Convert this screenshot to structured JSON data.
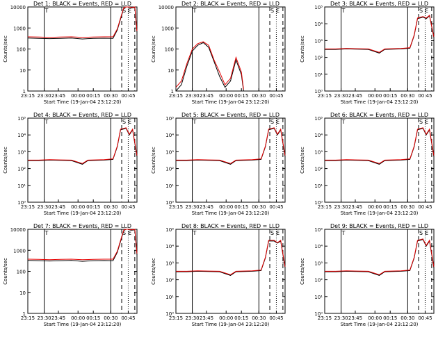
{
  "chart_data": {
    "type": "line",
    "layout_note": "3x3 grid of log-scale count-rate panels",
    "x_tick_labels": [
      "23:15",
      "23:30",
      "23:45",
      "00:00",
      "00:15",
      "00:30",
      "00:45"
    ],
    "x_label": "Start Time (19-Jan-04 23:12:20)",
    "y_label": "Counts/sec",
    "series_colors": {
      "events": "#000000",
      "lld": "#e60000"
    },
    "markers": {
      "left_tick_label": "T",
      "s_label": "S",
      "e_label": "E"
    },
    "panels": [
      {
        "title": "Det 1: BLACK = Events, RED = LLD",
        "y_ticks": [
          "1",
          "10",
          "100",
          "1000",
          "10000"
        ],
        "ylim": [
          1,
          10000
        ],
        "events": [
          [
            0,
            330
          ],
          [
            10,
            320
          ],
          [
            20,
            310
          ],
          [
            30,
            320
          ],
          [
            40,
            330
          ],
          [
            50,
            300
          ],
          [
            60,
            320
          ],
          [
            70,
            325
          ],
          [
            78,
            320
          ],
          [
            82,
            800
          ],
          [
            86,
            4000
          ],
          [
            88,
            9000
          ],
          [
            90,
            10000
          ],
          [
            92,
            10000
          ],
          [
            95,
            9000
          ],
          [
            98,
            9500
          ],
          [
            100,
            600
          ]
        ],
        "lld": [
          [
            0,
            380
          ],
          [
            10,
            370
          ],
          [
            20,
            360
          ],
          [
            30,
            370
          ],
          [
            40,
            380
          ],
          [
            50,
            360
          ],
          [
            60,
            370
          ],
          [
            70,
            380
          ],
          [
            78,
            380
          ],
          [
            82,
            900
          ],
          [
            86,
            4500
          ],
          [
            88,
            9500
          ],
          [
            90,
            10000
          ],
          [
            92,
            10000
          ],
          [
            95,
            9500
          ],
          [
            98,
            10000
          ],
          [
            100,
            700
          ]
        ]
      },
      {
        "title": "Det 2: BLACK = Events, RED = LLD",
        "y_ticks": [
          "1",
          "10",
          "100",
          "1000",
          "10000"
        ],
        "ylim": [
          1,
          10000
        ],
        "events": [
          [
            0,
            1
          ],
          [
            5,
            2
          ],
          [
            10,
            15
          ],
          [
            15,
            80
          ],
          [
            20,
            150
          ],
          [
            25,
            200
          ],
          [
            30,
            120
          ],
          [
            35,
            25
          ],
          [
            40,
            5
          ],
          [
            45,
            1.5
          ],
          [
            50,
            3
          ],
          [
            55,
            30
          ],
          [
            60,
            6
          ],
          [
            62,
            1
          ]
        ],
        "lld": [
          [
            0,
            1.5
          ],
          [
            5,
            3
          ],
          [
            10,
            20
          ],
          [
            15,
            100
          ],
          [
            20,
            180
          ],
          [
            25,
            220
          ],
          [
            30,
            150
          ],
          [
            35,
            30
          ],
          [
            40,
            8
          ],
          [
            45,
            2
          ],
          [
            50,
            4
          ],
          [
            55,
            40
          ],
          [
            60,
            8
          ],
          [
            62,
            1.2
          ]
        ]
      },
      {
        "title": "Det 3: BLACK = Events, RED = LLD",
        "y_ticks": [
          "10⁰",
          "10¹",
          "10²",
          "10³",
          "10⁴",
          "10⁵"
        ],
        "ylim": [
          1,
          100000
        ],
        "events": [
          [
            0,
            300
          ],
          [
            10,
            300
          ],
          [
            20,
            320
          ],
          [
            30,
            310
          ],
          [
            40,
            300
          ],
          [
            50,
            180
          ],
          [
            55,
            300
          ],
          [
            70,
            320
          ],
          [
            78,
            350
          ],
          [
            82,
            2000
          ],
          [
            85,
            20000
          ],
          [
            90,
            25000
          ],
          [
            93,
            20000
          ],
          [
            96,
            30000
          ],
          [
            100,
            1500
          ]
        ],
        "lld": [
          [
            0,
            320
          ],
          [
            10,
            320
          ],
          [
            20,
            340
          ],
          [
            30,
            330
          ],
          [
            40,
            320
          ],
          [
            50,
            200
          ],
          [
            55,
            320
          ],
          [
            70,
            340
          ],
          [
            78,
            380
          ],
          [
            82,
            2200
          ],
          [
            85,
            22000
          ],
          [
            90,
            27000
          ],
          [
            93,
            22000
          ],
          [
            96,
            32000
          ],
          [
            100,
            1700
          ]
        ]
      },
      {
        "title": "Det 4: BLACK = Events, RED = LLD",
        "y_ticks": [
          "10⁰",
          "10¹",
          "10²",
          "10³",
          "10⁴",
          "10⁵"
        ],
        "ylim": [
          1,
          100000
        ],
        "events": [
          [
            0,
            300
          ],
          [
            10,
            300
          ],
          [
            20,
            320
          ],
          [
            30,
            310
          ],
          [
            40,
            300
          ],
          [
            50,
            180
          ],
          [
            55,
            300
          ],
          [
            70,
            320
          ],
          [
            78,
            350
          ],
          [
            82,
            2000
          ],
          [
            85,
            20000
          ],
          [
            90,
            25000
          ],
          [
            93,
            10000
          ],
          [
            96,
            20000
          ],
          [
            100,
            500
          ]
        ],
        "lld": [
          [
            0,
            320
          ],
          [
            10,
            320
          ],
          [
            20,
            340
          ],
          [
            30,
            330
          ],
          [
            40,
            320
          ],
          [
            50,
            200
          ],
          [
            55,
            320
          ],
          [
            70,
            340
          ],
          [
            78,
            380
          ],
          [
            82,
            2200
          ],
          [
            85,
            22000
          ],
          [
            90,
            27000
          ],
          [
            93,
            11000
          ],
          [
            96,
            22000
          ],
          [
            100,
            600
          ]
        ]
      },
      {
        "title": "Det 5: BLACK = Events, RED = LLD",
        "y_ticks": [
          "10⁰",
          "10¹",
          "10²",
          "10³",
          "10⁴",
          "10⁵"
        ],
        "ylim": [
          1,
          100000
        ],
        "events": [
          [
            0,
            300
          ],
          [
            10,
            300
          ],
          [
            20,
            320
          ],
          [
            30,
            310
          ],
          [
            40,
            300
          ],
          [
            50,
            180
          ],
          [
            55,
            300
          ],
          [
            70,
            320
          ],
          [
            78,
            350
          ],
          [
            82,
            2000
          ],
          [
            85,
            20000
          ],
          [
            90,
            25000
          ],
          [
            93,
            10000
          ],
          [
            96,
            20000
          ],
          [
            100,
            500
          ]
        ],
        "lld": [
          [
            0,
            320
          ],
          [
            10,
            320
          ],
          [
            20,
            340
          ],
          [
            30,
            330
          ],
          [
            40,
            320
          ],
          [
            50,
            200
          ],
          [
            55,
            320
          ],
          [
            70,
            340
          ],
          [
            78,
            380
          ],
          [
            82,
            2200
          ],
          [
            85,
            22000
          ],
          [
            90,
            27000
          ],
          [
            93,
            11000
          ],
          [
            96,
            22000
          ],
          [
            100,
            600
          ]
        ]
      },
      {
        "title": "Det 6: BLACK = Events, RED = LLD",
        "y_ticks": [
          "10⁰",
          "10¹",
          "10²",
          "10³",
          "10⁴",
          "10⁵"
        ],
        "ylim": [
          1,
          100000
        ],
        "events": [
          [
            0,
            300
          ],
          [
            10,
            300
          ],
          [
            20,
            320
          ],
          [
            30,
            310
          ],
          [
            40,
            300
          ],
          [
            50,
            180
          ],
          [
            55,
            300
          ],
          [
            70,
            320
          ],
          [
            78,
            350
          ],
          [
            82,
            2000
          ],
          [
            85,
            20000
          ],
          [
            90,
            25000
          ],
          [
            93,
            10000
          ],
          [
            96,
            20000
          ],
          [
            100,
            500
          ]
        ],
        "lld": [
          [
            0,
            320
          ],
          [
            10,
            320
          ],
          [
            20,
            340
          ],
          [
            30,
            330
          ],
          [
            40,
            320
          ],
          [
            50,
            200
          ],
          [
            55,
            320
          ],
          [
            70,
            340
          ],
          [
            78,
            380
          ],
          [
            82,
            2200
          ],
          [
            85,
            22000
          ],
          [
            90,
            27000
          ],
          [
            93,
            11000
          ],
          [
            96,
            22000
          ],
          [
            100,
            600
          ]
        ]
      },
      {
        "title": "Det 7: BLACK = Events, RED = LLD",
        "y_ticks": [
          "1",
          "10",
          "100",
          "1000",
          "10000"
        ],
        "ylim": [
          1,
          10000
        ],
        "events": [
          [
            0,
            330
          ],
          [
            10,
            320
          ],
          [
            20,
            310
          ],
          [
            30,
            320
          ],
          [
            40,
            330
          ],
          [
            50,
            300
          ],
          [
            60,
            320
          ],
          [
            70,
            325
          ],
          [
            78,
            320
          ],
          [
            82,
            800
          ],
          [
            86,
            4000
          ],
          [
            88,
            9000
          ],
          [
            90,
            10000
          ],
          [
            92,
            10000
          ],
          [
            95,
            9000
          ],
          [
            98,
            9500
          ],
          [
            100,
            600
          ]
        ],
        "lld": [
          [
            0,
            380
          ],
          [
            10,
            370
          ],
          [
            20,
            360
          ],
          [
            30,
            370
          ],
          [
            40,
            380
          ],
          [
            50,
            360
          ],
          [
            60,
            370
          ],
          [
            70,
            380
          ],
          [
            78,
            380
          ],
          [
            82,
            900
          ],
          [
            86,
            4500
          ],
          [
            88,
            9500
          ],
          [
            90,
            10000
          ],
          [
            92,
            10000
          ],
          [
            95,
            9500
          ],
          [
            98,
            10000
          ],
          [
            100,
            700
          ]
        ]
      },
      {
        "title": "Det 8: BLACK = Events, RED = LLD",
        "y_ticks": [
          "10⁰",
          "10¹",
          "10²",
          "10³",
          "10⁴",
          "10⁵"
        ],
        "ylim": [
          1,
          100000
        ],
        "events": [
          [
            0,
            300
          ],
          [
            10,
            300
          ],
          [
            20,
            320
          ],
          [
            30,
            310
          ],
          [
            40,
            300
          ],
          [
            50,
            180
          ],
          [
            55,
            300
          ],
          [
            70,
            320
          ],
          [
            78,
            350
          ],
          [
            82,
            2000
          ],
          [
            85,
            20000
          ],
          [
            90,
            20000
          ],
          [
            93,
            15000
          ],
          [
            96,
            20000
          ],
          [
            100,
            500
          ]
        ],
        "lld": [
          [
            0,
            320
          ],
          [
            10,
            320
          ],
          [
            20,
            340
          ],
          [
            30,
            330
          ],
          [
            40,
            320
          ],
          [
            50,
            200
          ],
          [
            55,
            320
          ],
          [
            70,
            340
          ],
          [
            78,
            380
          ],
          [
            82,
            2200
          ],
          [
            85,
            22000
          ],
          [
            90,
            22000
          ],
          [
            93,
            16000
          ],
          [
            96,
            22000
          ],
          [
            100,
            600
          ]
        ]
      },
      {
        "title": "Det 9: BLACK = Events, RED = LLD",
        "y_ticks": [
          "10⁰",
          "10¹",
          "10²",
          "10³",
          "10⁴",
          "10⁵"
        ],
        "ylim": [
          1,
          100000
        ],
        "events": [
          [
            0,
            300
          ],
          [
            10,
            300
          ],
          [
            20,
            320
          ],
          [
            30,
            310
          ],
          [
            40,
            300
          ],
          [
            50,
            180
          ],
          [
            55,
            300
          ],
          [
            70,
            320
          ],
          [
            78,
            350
          ],
          [
            82,
            2000
          ],
          [
            85,
            20000
          ],
          [
            90,
            25000
          ],
          [
            93,
            10000
          ],
          [
            96,
            20000
          ],
          [
            100,
            500
          ]
        ],
        "lld": [
          [
            0,
            320
          ],
          [
            10,
            320
          ],
          [
            20,
            340
          ],
          [
            30,
            330
          ],
          [
            40,
            320
          ],
          [
            50,
            200
          ],
          [
            55,
            320
          ],
          [
            70,
            340
          ],
          [
            78,
            380
          ],
          [
            82,
            2200
          ],
          [
            85,
            22000
          ],
          [
            90,
            27000
          ],
          [
            93,
            11000
          ],
          [
            96,
            22000
          ],
          [
            100,
            600
          ]
        ]
      }
    ]
  }
}
